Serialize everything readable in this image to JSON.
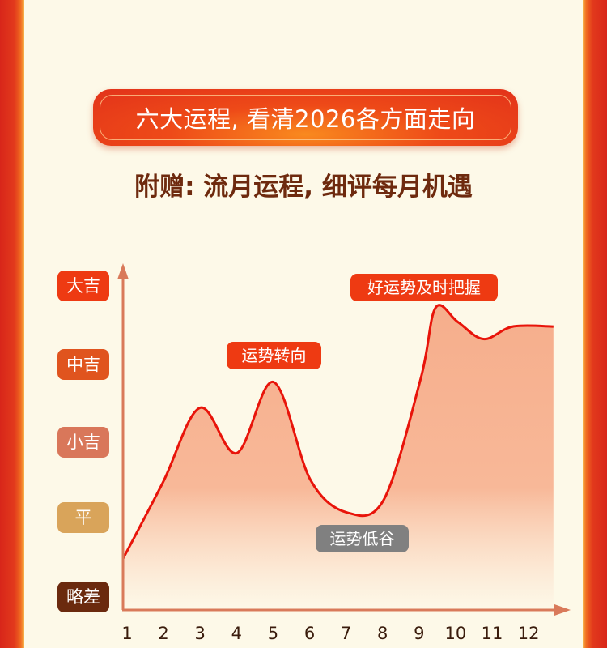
{
  "header": {
    "title": "六大运程, 看清2026各方面走向",
    "subtitle": "附赠: 流月运程, 细评每月机遇"
  },
  "chart_data": {
    "type": "area",
    "title": "",
    "xlabel": "",
    "ylabel": "",
    "x_ticks": [
      "1",
      "2",
      "3",
      "4",
      "5",
      "6",
      "7",
      "8",
      "9",
      "10",
      "11",
      "12"
    ],
    "y_levels": [
      {
        "label": "略差",
        "value": 0,
        "color": "#6b2a0e"
      },
      {
        "label": "平",
        "value": 1,
        "color": "#d9a45a"
      },
      {
        "label": "小吉",
        "value": 2,
        "color": "#d9775a"
      },
      {
        "label": "中吉",
        "value": 3,
        "color": "#e0541e"
      },
      {
        "label": "大吉",
        "value": 4,
        "color": "#ee3a12"
      }
    ],
    "ylim": [
      0,
      4
    ],
    "xlim": [
      1,
      12.6
    ],
    "series": [
      {
        "points": [
          [
            1,
            0.49
          ],
          [
            2,
            1.47
          ],
          [
            3,
            2.42
          ],
          [
            4,
            1.84
          ],
          [
            5,
            2.75
          ],
          [
            6,
            1.5
          ],
          [
            7,
            1.08
          ],
          [
            8,
            1.25
          ],
          [
            9,
            2.8
          ],
          [
            9.4,
            3.7
          ],
          [
            10,
            3.52
          ],
          [
            10.7,
            3.3
          ],
          [
            11.5,
            3.46
          ],
          [
            12.6,
            3.46
          ]
        ],
        "line_color": "#e8140a",
        "fill_color": "#f6b08e"
      }
    ],
    "annotations": [
      {
        "text": "好运势及时把握",
        "color": "#ee3a12"
      },
      {
        "text": "运势转向",
        "color": "#ee3a12"
      },
      {
        "text": "运势低谷",
        "color": "#808080"
      }
    ],
    "grid": false
  }
}
